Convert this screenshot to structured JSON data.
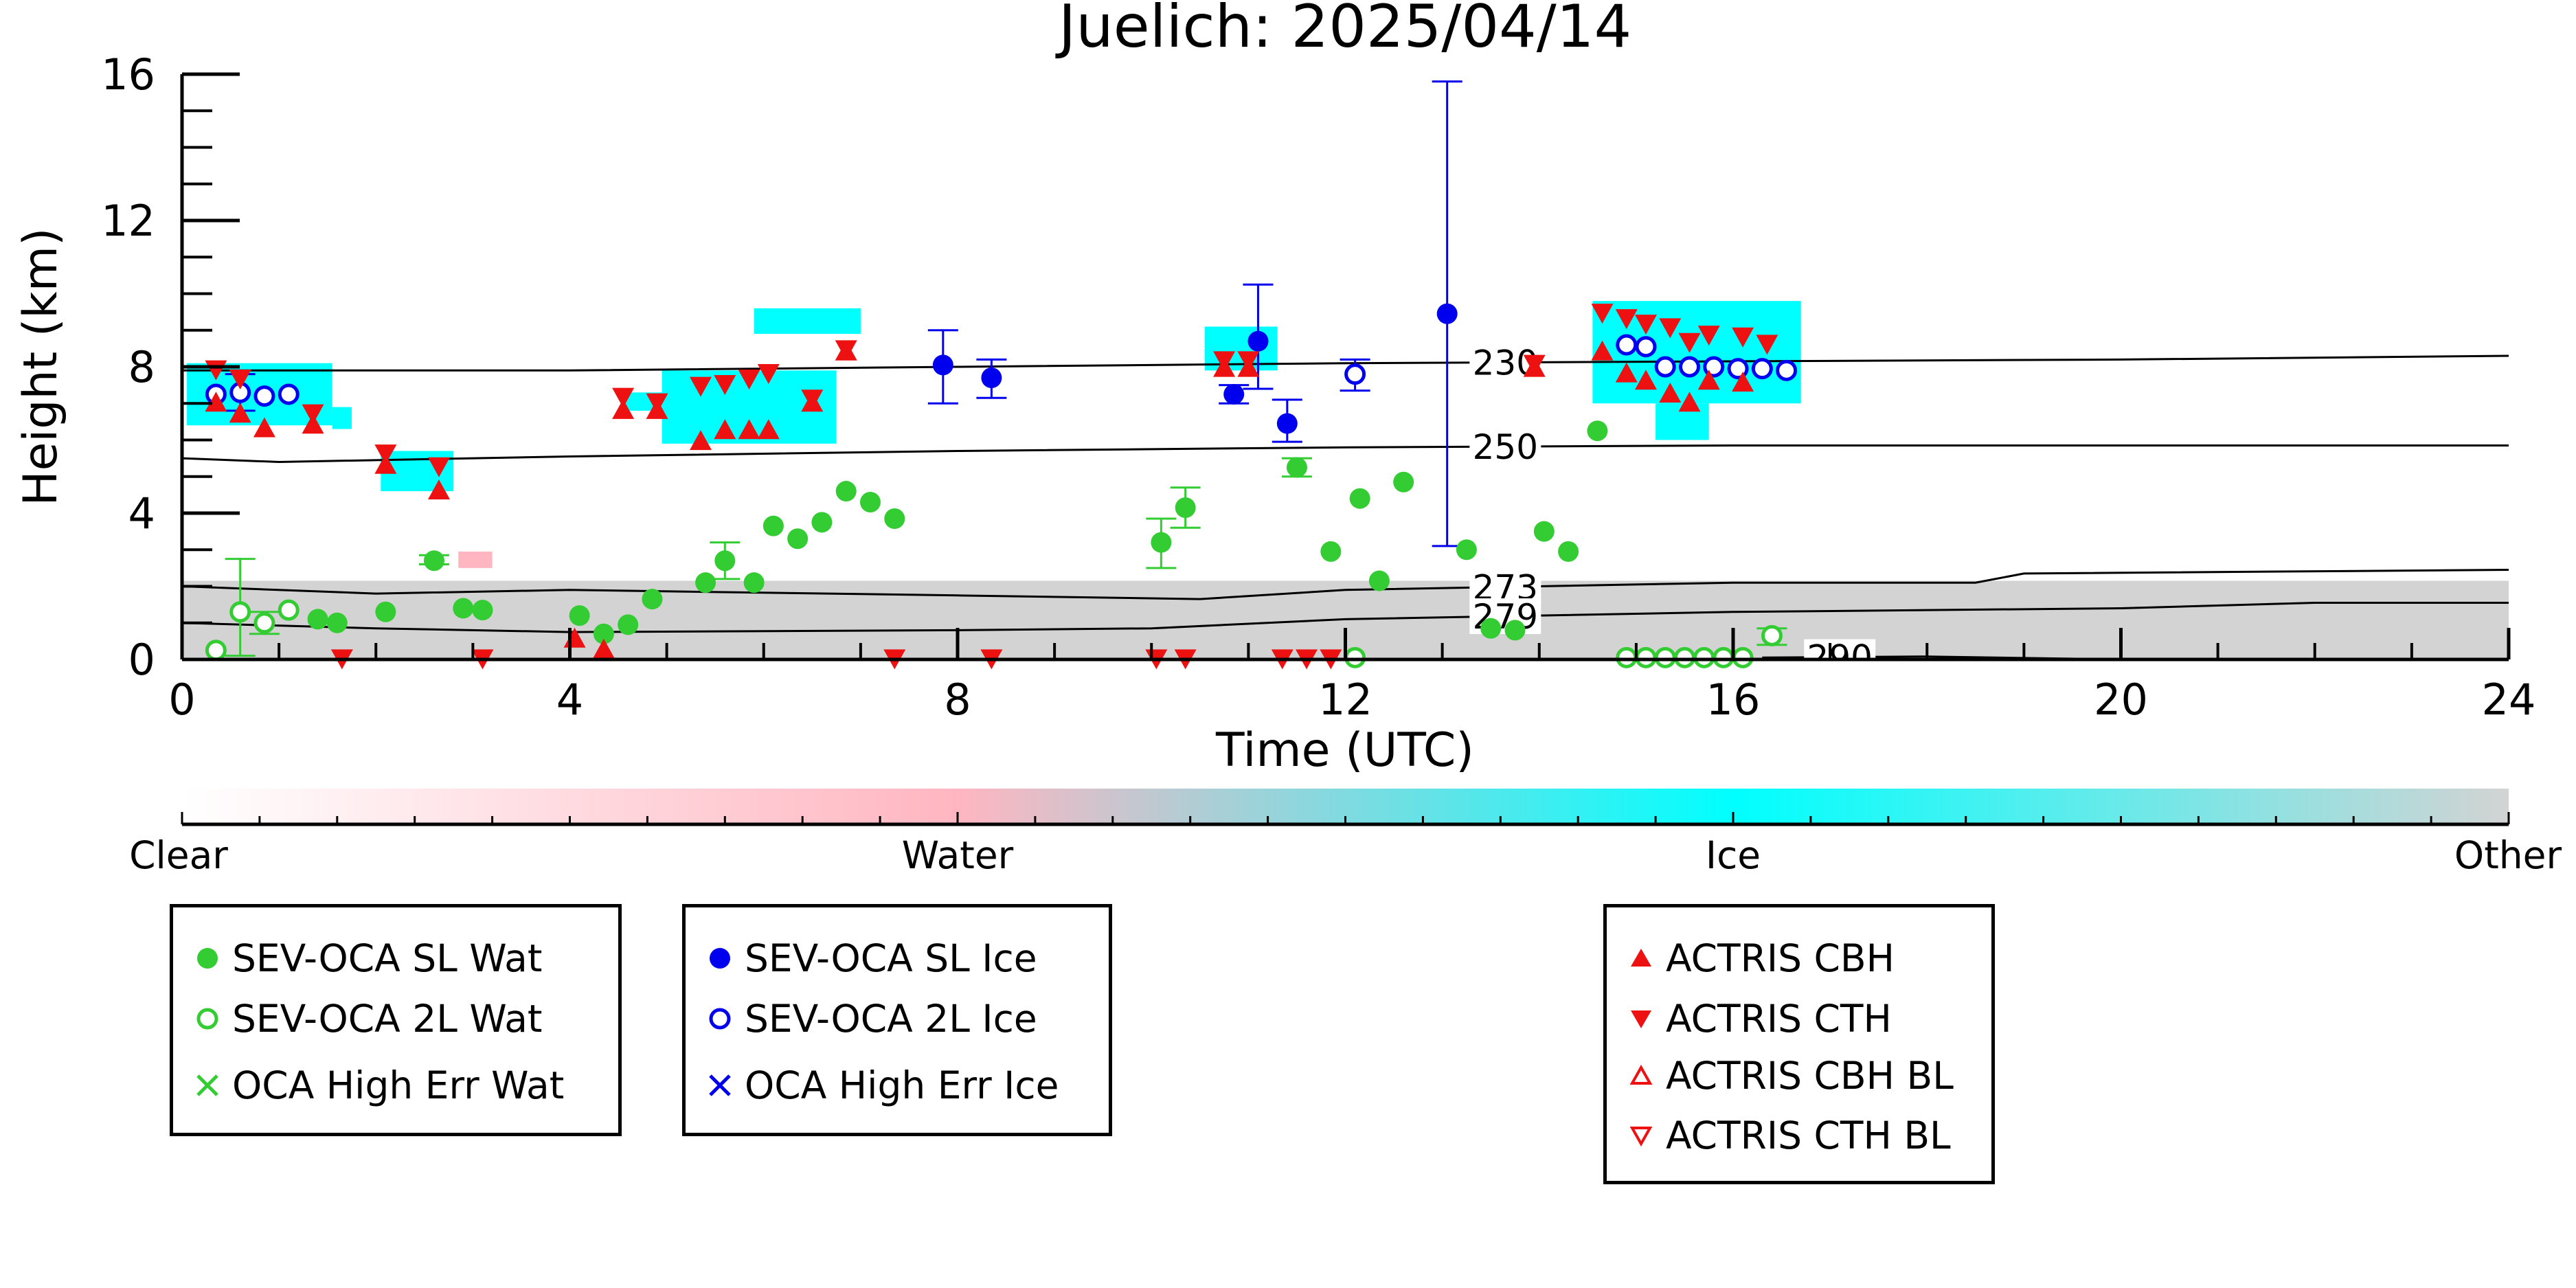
{
  "chart_data": {
    "type": "scatter",
    "title": "Juelich: 2025/04/14",
    "xlabel": "Time (UTC)",
    "ylabel": "Height (km)",
    "xlim": [
      0,
      24
    ],
    "ylim": [
      0,
      16
    ],
    "xticks": [
      "0",
      "4",
      "8",
      "12",
      "16",
      "20",
      "24"
    ],
    "yticks": [
      "0",
      "4",
      "8",
      "12",
      "16"
    ],
    "colorbar": {
      "labels": [
        "Clear",
        "Water",
        "Ice",
        "Other"
      ],
      "colors": [
        "#ffffff",
        "#ffb6c1",
        "#00ffff",
        "#d3d3d3"
      ]
    },
    "isotherms": [
      {
        "label": "230",
        "points": [
          [
            0,
            7.9
          ],
          [
            4,
            7.9
          ],
          [
            8,
            8.0
          ],
          [
            12,
            8.1
          ],
          [
            16,
            8.15
          ],
          [
            20,
            8.2
          ],
          [
            24,
            8.3
          ]
        ]
      },
      {
        "label": "250",
        "points": [
          [
            0,
            5.5
          ],
          [
            1,
            5.4
          ],
          [
            4,
            5.55
          ],
          [
            8,
            5.7
          ],
          [
            12,
            5.8
          ],
          [
            16,
            5.85
          ],
          [
            20,
            5.85
          ],
          [
            24,
            5.85
          ]
        ]
      },
      {
        "label": "273",
        "points": [
          [
            0,
            2.0
          ],
          [
            2,
            1.8
          ],
          [
            4,
            1.9
          ],
          [
            8,
            1.75
          ],
          [
            10.5,
            1.65
          ],
          [
            12,
            1.9
          ],
          [
            16,
            2.1
          ],
          [
            18.5,
            2.1
          ],
          [
            19,
            2.35
          ],
          [
            24,
            2.45
          ]
        ]
      },
      {
        "label": "279",
        "points": [
          [
            0,
            1.0
          ],
          [
            2,
            0.85
          ],
          [
            4,
            0.75
          ],
          [
            8,
            0.8
          ],
          [
            10,
            0.85
          ],
          [
            12,
            1.1
          ],
          [
            16,
            1.3
          ],
          [
            20,
            1.4
          ],
          [
            22,
            1.55
          ],
          [
            24,
            1.55
          ]
        ]
      },
      {
        "label": "290",
        "points": [
          [
            16.3,
            0.05
          ],
          [
            18,
            0.08
          ],
          [
            20,
            0.0
          ],
          [
            24,
            0.0
          ]
        ]
      }
    ],
    "series": [
      {
        "name": "SEV-OCA SL Wat",
        "color": "#33cc33",
        "marker": "filled-circle",
        "points": [
          [
            1.4,
            1.1
          ],
          [
            1.6,
            1.0
          ],
          [
            2.1,
            1.3
          ],
          [
            2.6,
            2.7
          ],
          [
            2.9,
            1.4
          ],
          [
            3.1,
            1.35
          ],
          [
            4.1,
            1.2
          ],
          [
            4.35,
            0.7
          ],
          [
            4.6,
            0.95
          ],
          [
            4.85,
            1.65
          ],
          [
            5.4,
            2.1
          ],
          [
            5.6,
            2.7
          ],
          [
            5.9,
            2.1
          ],
          [
            6.1,
            3.65
          ],
          [
            6.35,
            3.3
          ],
          [
            6.6,
            3.75
          ],
          [
            6.85,
            4.6
          ],
          [
            7.1,
            4.3
          ],
          [
            7.35,
            3.85
          ],
          [
            10.1,
            3.2
          ],
          [
            10.35,
            4.15
          ],
          [
            11.5,
            5.25
          ],
          [
            11.85,
            2.95
          ],
          [
            12.15,
            4.4
          ],
          [
            12.35,
            2.15
          ],
          [
            12.6,
            4.85
          ],
          [
            13.25,
            3.0
          ],
          [
            13.5,
            0.85
          ],
          [
            13.75,
            0.8
          ],
          [
            14.05,
            3.5
          ],
          [
            14.3,
            2.95
          ],
          [
            14.6,
            6.25
          ]
        ]
      },
      {
        "name": "SEV-OCA 2L Wat",
        "color": "#33cc33",
        "marker": "open-circle",
        "points": [
          [
            0.35,
            0.25
          ],
          [
            0.6,
            1.3
          ],
          [
            0.85,
            1.0
          ],
          [
            1.1,
            1.35
          ],
          [
            12.1,
            0.05
          ],
          [
            14.9,
            0.05
          ],
          [
            15.1,
            0.05
          ],
          [
            15.3,
            0.05
          ],
          [
            15.5,
            0.05
          ],
          [
            15.7,
            0.05
          ],
          [
            15.9,
            0.05
          ],
          [
            16.1,
            0.05
          ],
          [
            16.4,
            0.65
          ]
        ]
      },
      {
        "name": "OCA High Err Wat",
        "color": "#33cc33",
        "marker": "x",
        "points": []
      },
      {
        "name": "SEV-OCA SL Ice",
        "color": "#0000ee",
        "marker": "filled-circle",
        "points": [
          [
            7.85,
            8.05
          ],
          [
            8.35,
            7.7
          ],
          [
            10.85,
            7.25
          ],
          [
            11.1,
            8.7
          ],
          [
            11.4,
            6.45
          ],
          [
            13.05,
            9.45
          ]
        ]
      },
      {
        "name": "SEV-OCA 2L Ice",
        "color": "#0000ee",
        "marker": "open-circle",
        "points": [
          [
            0.35,
            7.25
          ],
          [
            0.6,
            7.3
          ],
          [
            0.85,
            7.2
          ],
          [
            1.1,
            7.25
          ],
          [
            12.1,
            7.8
          ],
          [
            14.9,
            8.6
          ],
          [
            15.1,
            8.55
          ],
          [
            15.3,
            8.0
          ],
          [
            15.55,
            8.0
          ],
          [
            15.8,
            8.0
          ],
          [
            16.05,
            7.95
          ],
          [
            16.3,
            7.95
          ],
          [
            16.55,
            7.9
          ]
        ]
      },
      {
        "name": "OCA High Err Ice",
        "color": "#0000ee",
        "marker": "x",
        "points": []
      },
      {
        "name": "ACTRIS CBH",
        "color": "#ee1111",
        "marker": "triangle-up",
        "points": [
          [
            0.35,
            7.0
          ],
          [
            0.6,
            6.7
          ],
          [
            0.85,
            6.3
          ],
          [
            1.35,
            6.4
          ],
          [
            2.1,
            5.3
          ],
          [
            2.65,
            4.6
          ],
          [
            4.05,
            0.55
          ],
          [
            4.35,
            0.25
          ],
          [
            4.55,
            6.8
          ],
          [
            4.9,
            6.8
          ],
          [
            5.35,
            5.95
          ],
          [
            5.6,
            6.25
          ],
          [
            5.85,
            6.25
          ],
          [
            6.05,
            6.25
          ],
          [
            6.5,
            7.0
          ],
          [
            6.85,
            8.4
          ],
          [
            10.75,
            7.95
          ],
          [
            11.0,
            7.95
          ],
          [
            13.95,
            7.95
          ],
          [
            14.65,
            8.4
          ],
          [
            14.9,
            7.8
          ],
          [
            15.1,
            7.6
          ],
          [
            15.35,
            7.25
          ],
          [
            15.55,
            7.0
          ],
          [
            15.75,
            7.6
          ],
          [
            16.1,
            7.55
          ]
        ]
      },
      {
        "name": "ACTRIS CTH",
        "color": "#ee1111",
        "marker": "triangle-down",
        "points": [
          [
            0.35,
            7.95
          ],
          [
            0.6,
            7.7
          ],
          [
            1.35,
            6.75
          ],
          [
            2.1,
            5.65
          ],
          [
            2.65,
            5.3
          ],
          [
            4.55,
            7.2
          ],
          [
            4.9,
            7.05
          ],
          [
            5.35,
            7.5
          ],
          [
            5.6,
            7.55
          ],
          [
            5.85,
            7.7
          ],
          [
            6.05,
            7.85
          ],
          [
            6.5,
            7.15
          ],
          [
            6.85,
            8.5
          ],
          [
            10.75,
            8.2
          ],
          [
            11.0,
            8.2
          ],
          [
            13.95,
            8.1
          ],
          [
            14.65,
            9.5
          ],
          [
            14.9,
            9.35
          ],
          [
            15.1,
            9.2
          ],
          [
            15.35,
            9.1
          ],
          [
            15.55,
            8.7
          ],
          [
            15.75,
            8.9
          ],
          [
            16.1,
            8.85
          ],
          [
            16.35,
            8.65
          ],
          [
            1.65,
            0.05
          ],
          [
            3.1,
            0.05
          ],
          [
            7.35,
            0.05
          ],
          [
            8.35,
            0.05
          ],
          [
            10.05,
            0.05
          ],
          [
            10.35,
            0.05
          ],
          [
            11.35,
            0.05
          ],
          [
            11.6,
            0.05
          ],
          [
            11.85,
            0.05
          ]
        ]
      },
      {
        "name": "ACTRIS CBH BL",
        "color": "#ee1111",
        "marker": "open-triangle-up",
        "points": []
      },
      {
        "name": "ACTRIS CTH BL",
        "color": "#ee1111",
        "marker": "open-triangle-down",
        "points": []
      }
    ],
    "error_bars": [
      {
        "x": 0.6,
        "low": 0.1,
        "high": 2.75,
        "color": "#33cc33"
      },
      {
        "x": 0.85,
        "low": 0.7,
        "high": 1.3,
        "color": "#33cc33"
      },
      {
        "x": 2.6,
        "low": 2.6,
        "high": 2.85,
        "color": "#33cc33"
      },
      {
        "x": 5.6,
        "low": 2.2,
        "high": 3.2,
        "color": "#33cc33"
      },
      {
        "x": 10.1,
        "low": 2.5,
        "high": 3.85,
        "color": "#33cc33"
      },
      {
        "x": 10.35,
        "low": 3.6,
        "high": 4.7,
        "color": "#33cc33"
      },
      {
        "x": 11.5,
        "low": 5.0,
        "high": 5.5,
        "color": "#33cc33"
      },
      {
        "x": 16.4,
        "low": 0.4,
        "high": 0.85,
        "color": "#33cc33"
      },
      {
        "x": 0.6,
        "low": 6.8,
        "high": 7.8,
        "color": "#0000ee"
      },
      {
        "x": 7.85,
        "low": 7.0,
        "high": 9.0,
        "color": "#0000ee"
      },
      {
        "x": 8.35,
        "low": 7.15,
        "high": 8.2,
        "color": "#0000ee"
      },
      {
        "x": 10.85,
        "low": 7.0,
        "high": 7.5,
        "color": "#0000ee"
      },
      {
        "x": 11.1,
        "low": 7.4,
        "high": 10.25,
        "color": "#0000ee"
      },
      {
        "x": 11.4,
        "low": 5.95,
        "high": 7.1,
        "color": "#0000ee"
      },
      {
        "x": 12.1,
        "low": 7.35,
        "high": 8.2,
        "color": "#0000ee"
      },
      {
        "x": 13.05,
        "low": 3.1,
        "high": 15.8,
        "color": "#0000ee"
      }
    ],
    "classification_regions": [
      {
        "class": "Ice",
        "x0": 0.05,
        "x1": 1.55,
        "y0": 6.4,
        "y1": 8.1
      },
      {
        "class": "Ice",
        "x0": 1.55,
        "x1": 1.75,
        "y0": 6.3,
        "y1": 6.9
      },
      {
        "class": "Ice",
        "x0": 2.05,
        "x1": 2.8,
        "y0": 4.6,
        "y1": 5.7
      },
      {
        "class": "Ice",
        "x0": 4.55,
        "x1": 4.95,
        "y0": 6.8,
        "y1": 7.3
      },
      {
        "class": "Ice",
        "x0": 4.95,
        "x1": 6.75,
        "y0": 5.9,
        "y1": 7.9
      },
      {
        "class": "Ice",
        "x0": 5.9,
        "x1": 7.0,
        "y0": 8.9,
        "y1": 9.6
      },
      {
        "class": "Ice",
        "x0": 10.55,
        "x1": 11.3,
        "y0": 7.9,
        "y1": 9.1
      },
      {
        "class": "Ice",
        "x0": 14.55,
        "x1": 16.7,
        "y0": 7.0,
        "y1": 9.8
      },
      {
        "class": "Ice",
        "x0": 15.2,
        "x1": 15.75,
        "y0": 6.0,
        "y1": 7.0
      },
      {
        "class": "Other",
        "x0": 0.0,
        "x1": 24.0,
        "y0": 0.0,
        "y1": 2.15
      },
      {
        "class": "Water",
        "x0": 2.85,
        "x1": 3.2,
        "y0": 2.5,
        "y1": 2.95
      }
    ]
  }
}
